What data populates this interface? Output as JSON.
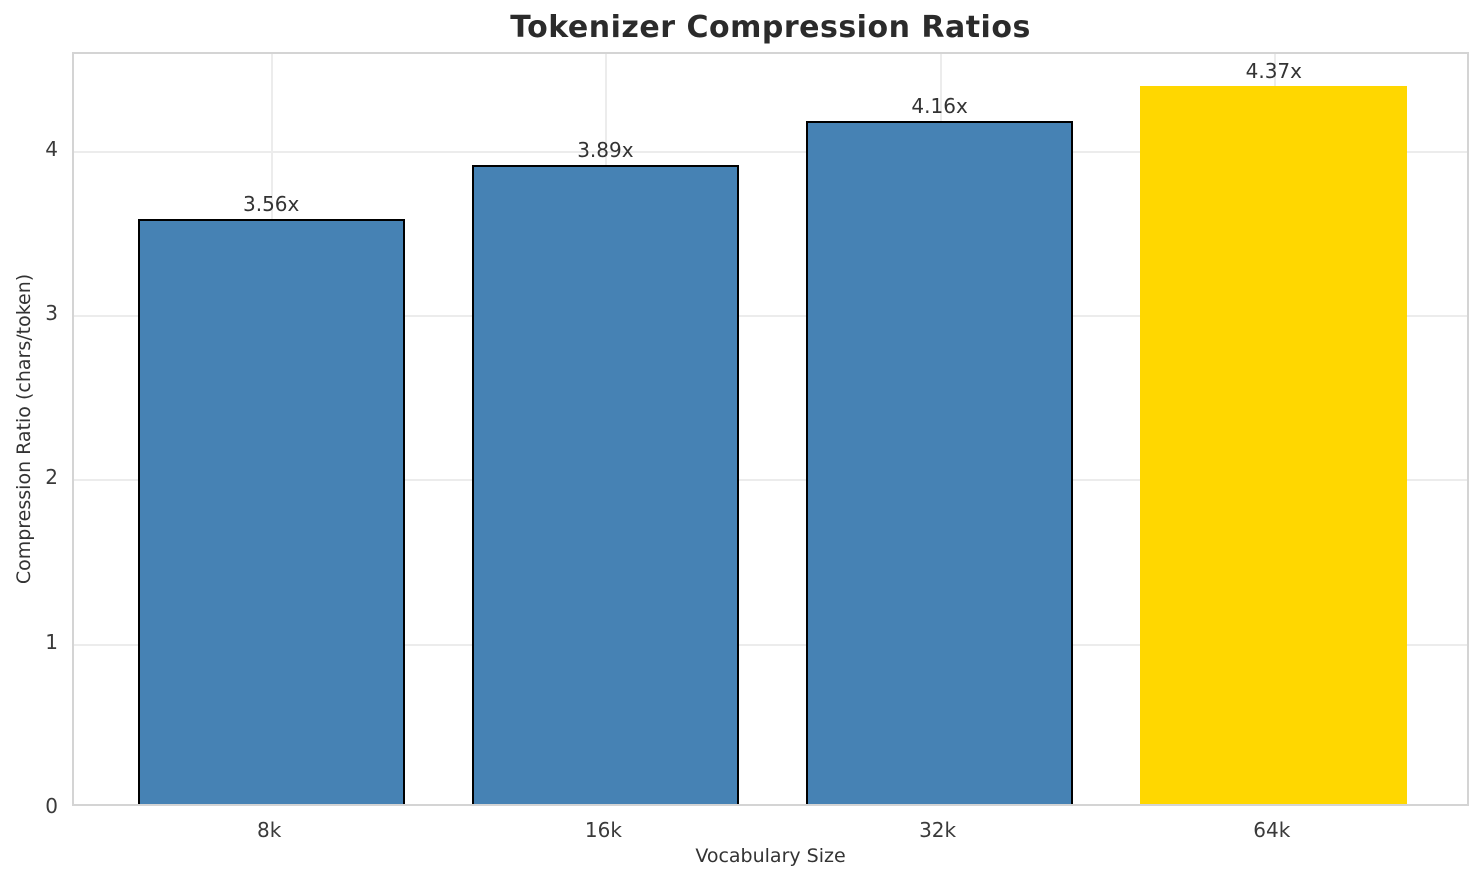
{
  "chart_data": {
    "type": "bar",
    "title": "Tokenizer Compression Ratios",
    "xlabel": "Vocabulary Size",
    "ylabel": "Compression Ratio (chars/token)",
    "categories": [
      "8k",
      "16k",
      "32k",
      "64k"
    ],
    "values": [
      3.56,
      3.89,
      4.16,
      4.37
    ],
    "bar_labels": [
      "3.56x",
      "3.89x",
      "4.16x",
      "4.37x"
    ],
    "bar_colors": [
      "#4682B4",
      "#4682B4",
      "#4682B4",
      "#FFD700"
    ],
    "bar_edge_colors": [
      "#000000",
      "#000000",
      "#000000",
      "none"
    ],
    "yticks": [
      0,
      1,
      2,
      3,
      4
    ],
    "ylim": [
      0,
      4.59
    ],
    "xlim": [
      -0.59,
      3.59
    ],
    "bar_width": 0.8,
    "grid": true,
    "legend": "none",
    "colors": {
      "background": "#ffffff",
      "grid": "#ececec",
      "spine": "#d4d4d4",
      "title_text": "#2b2b2b",
      "tick_text": "#3a3a3a",
      "label_text": "#333333"
    }
  }
}
